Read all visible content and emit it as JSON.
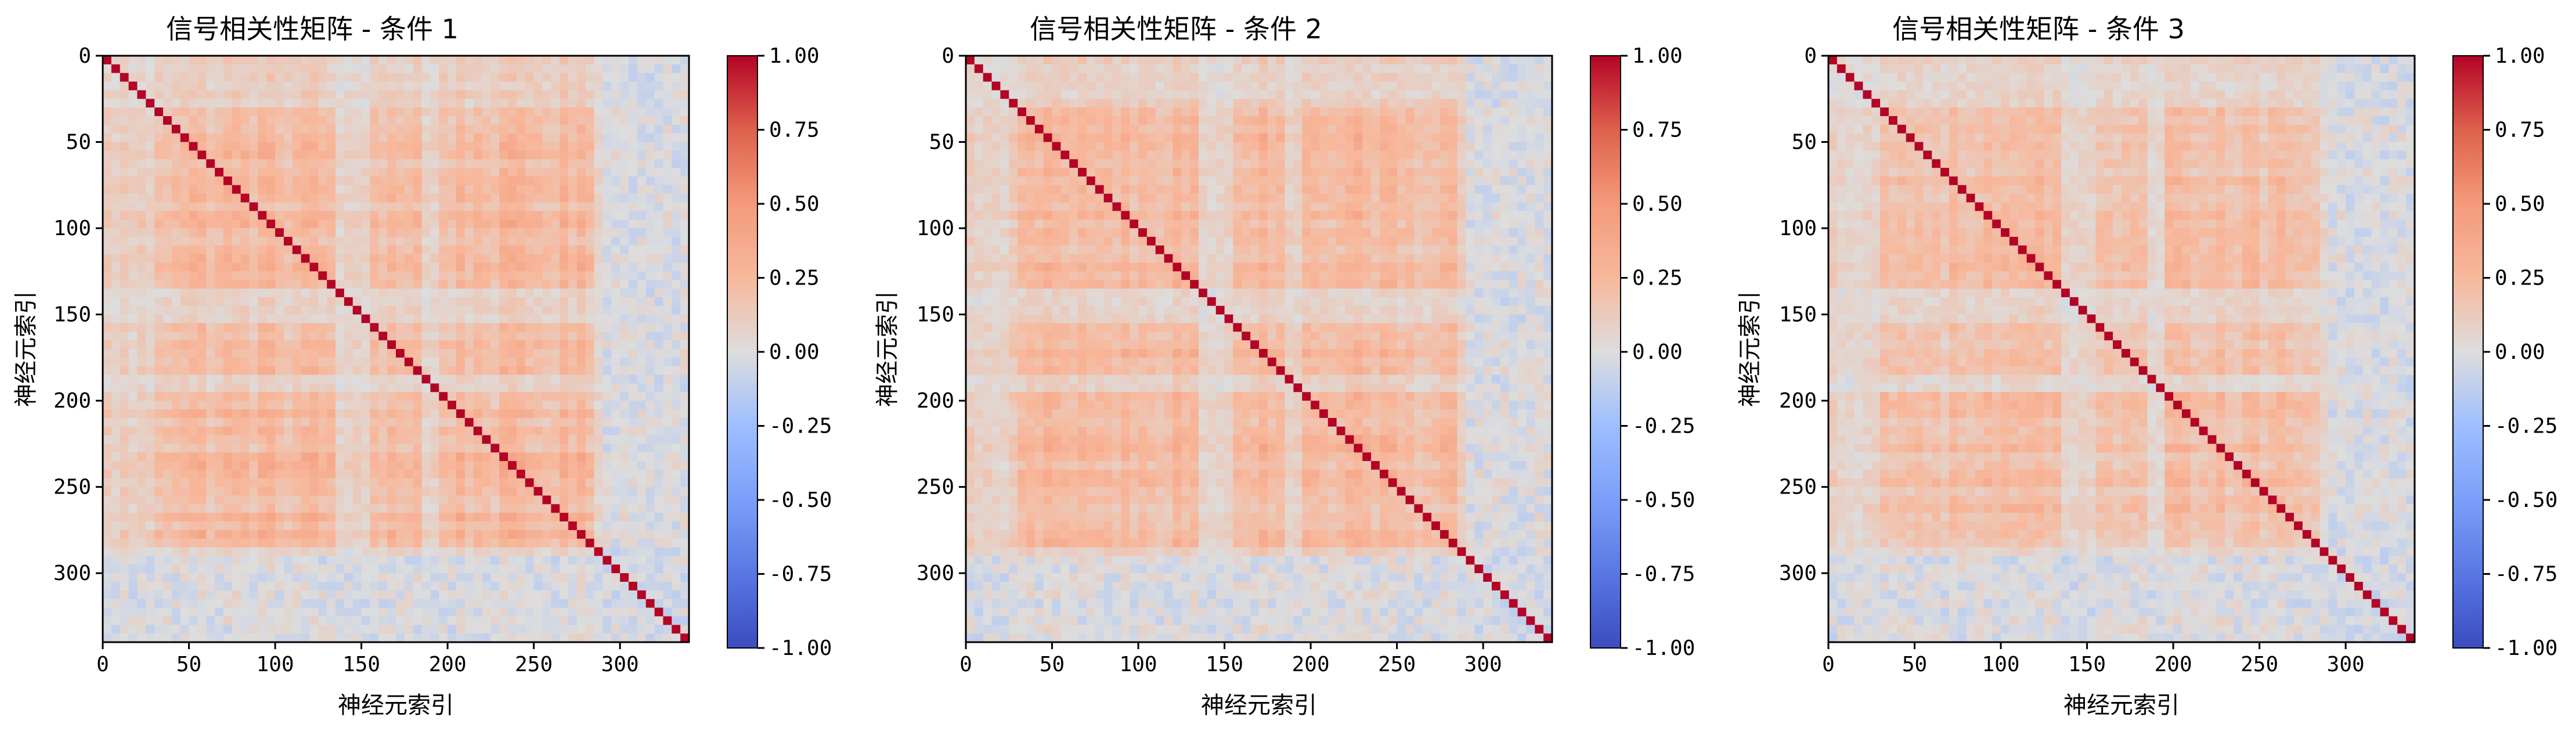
{
  "figure": {
    "background": "#ffffff"
  },
  "chart_data": [
    {
      "type": "heatmap",
      "title": "信号相关性矩阵 - 条件 1",
      "xlabel": "神经元索引",
      "ylabel": "神经元索引",
      "n": 340,
      "xlim": [
        0,
        340
      ],
      "ylim": [
        340,
        0
      ],
      "x_ticks": [
        0,
        50,
        100,
        150,
        200,
        250,
        300
      ],
      "y_ticks": [
        0,
        50,
        100,
        150,
        200,
        250,
        300
      ],
      "colorbar": {
        "min": -1.0,
        "max": 1.0,
        "ticks": [
          "1.00",
          "0.75",
          "0.50",
          "0.25",
          "0.00",
          "-0.25",
          "-0.50",
          "-0.75",
          "-1.00"
        ]
      },
      "colormap": "coolwarm",
      "diagonal": 1.0,
      "description_values": {
        "typical_offdiag": [
          0.0,
          0.3
        ],
        "cluster_block": [
          30,
          280
        ]
      }
    },
    {
      "type": "heatmap",
      "title": "信号相关性矩阵 - 条件 2",
      "xlabel": "神经元索引",
      "ylabel": "神经元索引",
      "n": 340,
      "xlim": [
        0,
        340
      ],
      "ylim": [
        340,
        0
      ],
      "x_ticks": [
        0,
        50,
        100,
        150,
        200,
        250,
        300
      ],
      "y_ticks": [
        0,
        50,
        100,
        150,
        200,
        250,
        300
      ],
      "colorbar": {
        "min": -1.0,
        "max": 1.0,
        "ticks": [
          "1.00",
          "0.75",
          "0.50",
          "0.25",
          "0.00",
          "-0.25",
          "-0.50",
          "-0.75",
          "-1.00"
        ]
      },
      "colormap": "coolwarm",
      "diagonal": 1.0,
      "description_values": {
        "typical_offdiag": [
          0.0,
          0.3
        ],
        "cluster_block": [
          30,
          280
        ]
      }
    },
    {
      "type": "heatmap",
      "title": "信号相关性矩阵 - 条件 3",
      "xlabel": "神经元索引",
      "ylabel": "神经元索引",
      "n": 340,
      "xlim": [
        0,
        340
      ],
      "ylim": [
        340,
        0
      ],
      "x_ticks": [
        0,
        50,
        100,
        150,
        200,
        250,
        300
      ],
      "y_ticks": [
        0,
        50,
        100,
        150,
        200,
        250,
        300
      ],
      "colorbar": {
        "min": -1.0,
        "max": 1.0,
        "ticks": [
          "1.00",
          "0.75",
          "0.50",
          "0.25",
          "0.00",
          "-0.25",
          "-0.50",
          "-0.75",
          "-1.00"
        ]
      },
      "colormap": "coolwarm",
      "diagonal": 1.0,
      "description_values": {
        "typical_offdiag": [
          0.0,
          0.25
        ],
        "cluster_block": [
          30,
          280
        ]
      }
    }
  ],
  "colors": {
    "neg_end": "#3b4cc0",
    "mid": "#dddddd",
    "pos_end": "#b40426",
    "axes": "#000000"
  }
}
